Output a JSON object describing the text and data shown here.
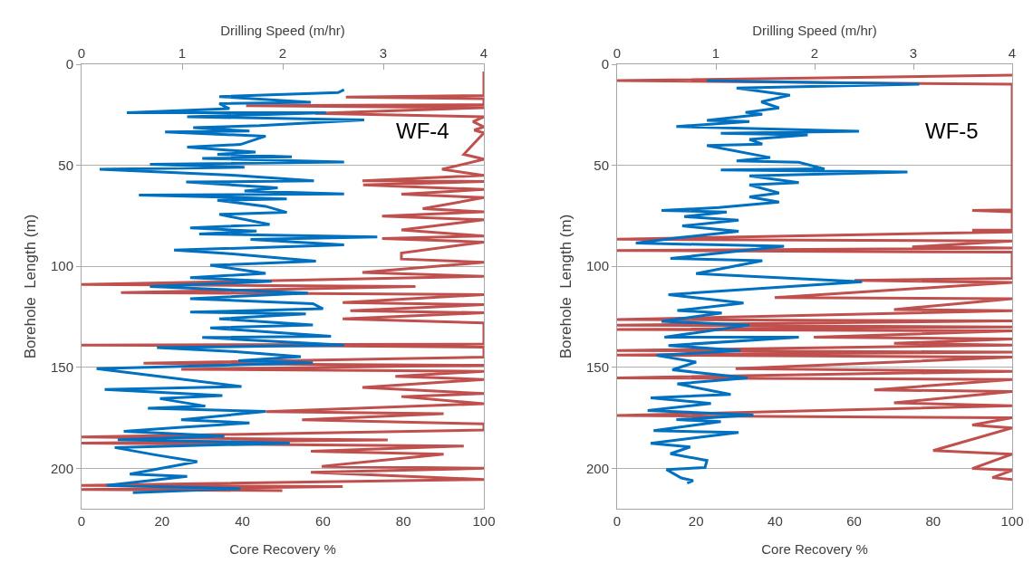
{
  "chart_data": [
    {
      "type": "line",
      "annotations": [
        "WF-4"
      ],
      "xlabel": "Core Recovery %",
      "x2label": "Drilling Speed (m/hr)",
      "ylabel": "Borehole  Length (m)",
      "xlim": [
        0,
        100
      ],
      "xticks": [
        0,
        20,
        40,
        60,
        80,
        100
      ],
      "x2lim": [
        0,
        4
      ],
      "x2ticks": [
        0,
        1,
        2,
        3,
        4
      ],
      "ylim": [
        220,
        0
      ],
      "yticks": [
        0,
        50,
        100,
        150,
        200
      ],
      "grid": "y",
      "marker": "none",
      "series": [
        {
          "color": "#c0504d",
          "x": [
            100,
            100,
            65.7,
            100,
            100,
            40.9,
            100,
            58.1,
            100,
            97.3,
            100,
            97.6,
            100,
            95,
            100,
            89.6,
            100,
            69.8,
            100,
            70,
            100,
            79.5,
            100,
            84.8,
            100,
            74.7,
            100,
            79.5,
            100,
            74.7,
            100,
            79.5,
            79.5,
            100,
            69.8,
            100,
            0,
            83,
            9.8,
            100,
            64.9,
            100,
            66.8,
            100,
            64.9,
            100,
            100,
            0,
            65,
            100,
            100,
            15.4,
            100,
            24.8,
            100,
            78,
            100,
            69.8,
            100,
            79.5,
            100,
            45.8,
            90,
            54.8,
            100,
            100,
            0,
            76.1,
            0,
            95,
            57,
            90,
            59.7,
            100,
            57,
            100,
            0,
            64.9,
            0,
            49.9
          ],
          "values": [
            3.6,
            15.5,
            16.2,
            17,
            20,
            20.5,
            21.5,
            24.3,
            26,
            28.4,
            31,
            32.6,
            34,
            44.6,
            47,
            52,
            55,
            57.7,
            58,
            59.7,
            62,
            64.3,
            66,
            71.5,
            73,
            75.2,
            77,
            82,
            85,
            86.3,
            88,
            93.4,
            96.4,
            98,
            103.1,
            105,
            109,
            110,
            113,
            114,
            118,
            119,
            122,
            123,
            126,
            128,
            138.5,
            139,
            139.5,
            140,
            145,
            148,
            149,
            151,
            152,
            154.5,
            156,
            160,
            163,
            164.5,
            168,
            172,
            173,
            176,
            178,
            181,
            184.5,
            186,
            187.5,
            189,
            191.5,
            193,
            199,
            200,
            202,
            205.5,
            208.5,
            209,
            210.5,
            211
          ]
        },
        {
          "color": "#0070c0",
          "axis": "x2",
          "x": [
            2.61,
            2.55,
            1.37,
            2.28,
            1.37,
            1.47,
            0.45,
            2.43,
            1.05,
            2.81,
            1.77,
            1.11,
            1.67,
            0.83,
            1.83,
            1.58,
            1.05,
            1.73,
            1.35,
            2.09,
            1.2,
            2.61,
            0.68,
            1.62,
            0.18,
            1.53,
            2.31,
            1.04,
            1.95,
            1.62,
            2.61,
            0.57,
            2.04,
            1.35,
            1.83,
            2.04,
            1.37,
            1.87,
            1.08,
            1.74,
            1.17,
            2.94,
            1.68,
            2.61,
            0.92,
            1.41,
            2.33,
            1.28,
            1.83,
            1.08,
            1.89,
            0.68,
            2.25,
            1.08,
            2.3,
            2.4,
            1.08,
            2.23,
            1.37,
            2.3,
            1.28,
            2.48,
            1.2,
            2.61,
            0.75,
            1.5,
            2.18,
            1.56,
            2.3,
            0.15,
            1.59,
            0.23,
            1.4,
            0.78,
            1.23,
            0.66,
            1.83,
            0.99,
            1.67,
            0.96,
            0.42,
            1.42,
            0.36,
            2.07,
            0.33,
            0.74,
            1.15,
            0.48,
            1.05,
            0.25,
            1.58,
            0.51
          ],
          "values": [
            12.6,
            14,
            16,
            18.8,
            19.5,
            22,
            24,
            24,
            26,
            27.5,
            30.4,
            31.4,
            33,
            33.5,
            35.6,
            39.7,
            41,
            43.5,
            44.6,
            45.8,
            46.6,
            48.4,
            49.5,
            51,
            52,
            55,
            57.7,
            58.3,
            61.2,
            62.7,
            64.2,
            64.7,
            66.6,
            67.3,
            70.3,
            73.3,
            74.3,
            79.3,
            81,
            82.6,
            84,
            85.5,
            86.7,
            89.4,
            92,
            93.5,
            97.5,
            99.5,
            103.5,
            105.6,
            107.4,
            110,
            113.3,
            116,
            118.5,
            121,
            122.7,
            123.5,
            126,
            129,
            130.5,
            134.6,
            135.2,
            139,
            140.3,
            142.2,
            144.7,
            146.7,
            147.7,
            150.7,
            159.5,
            161,
            164,
            165.5,
            169.2,
            170.3,
            171.8,
            176,
            177.5,
            179.8,
            181.7,
            184,
            185.8,
            187.5,
            189.7,
            193.4,
            196.7,
            202.9,
            204,
            208.5,
            210,
            212
          ]
        }
      ]
    },
    {
      "type": "line",
      "annotations": [
        "WF-5"
      ],
      "xlabel": "Core Recovery %",
      "x2label": "Drilling Speed (m/hr)",
      "ylabel": "Borehole  Length (m)",
      "xlim": [
        0,
        100
      ],
      "xticks": [
        0,
        20,
        40,
        60,
        80,
        100
      ],
      "x2lim": [
        0,
        4
      ],
      "x2ticks": [
        0,
        1,
        2,
        3,
        4
      ],
      "ylim": [
        220,
        0
      ],
      "yticks": [
        0,
        50,
        100,
        150,
        200
      ],
      "grid": "y",
      "marker": "none",
      "series": [
        {
          "color": "#c0504d",
          "x": [
            100,
            0,
            100,
            100,
            89.9,
            100,
            100,
            89.9,
            100,
            0,
            100,
            74.7,
            100,
            0,
            100,
            100,
            60.1,
            100,
            39.9,
            100,
            70.1,
            100,
            0,
            100,
            0,
            100,
            0,
            100,
            49.8,
            100,
            70.1,
            100,
            0,
            100,
            0,
            100,
            30,
            100,
            0,
            100,
            65.1,
            100,
            70.1,
            100,
            0,
            100,
            89.9,
            100,
            80,
            100,
            89.9,
            100,
            95,
            100
          ],
          "values": [
            5.4,
            8.1,
            9.9,
            72,
            72.4,
            73,
            82,
            82.1,
            83,
            86.6,
            87.5,
            90.4,
            91,
            92.2,
            93,
            106,
            107,
            108,
            115.5,
            116,
            121.4,
            122,
            126.4,
            127,
            129.1,
            130,
            131.3,
            132,
            135.1,
            136,
            138.1,
            139,
            141.7,
            142.5,
            143.9,
            145,
            150.7,
            152,
            155.2,
            156,
            161.2,
            162,
            167.6,
            169,
            173.9,
            175,
            178.6,
            180,
            191.2,
            193,
            200.1,
            201,
            204.6,
            205.5
          ]
        },
        {
          "color": "#0070c0",
          "axis": "x2",
          "x": [
            0.91,
            3.06,
            1.21,
            1.75,
            1.46,
            1.64,
            1.3,
            1.47,
            0.91,
            1.34,
            0.6,
            2.45,
            1.05,
            1.93,
            1.34,
            1.47,
            0.91,
            1.55,
            1.21,
            1.84,
            2.1,
            1.05,
            2.94,
            1.34,
            1.84,
            1.34,
            1.64,
            1.34,
            1.64,
            1.03,
            0.45,
            1.11,
            0.68,
            1.23,
            0.66,
            1.23,
            0.65,
            0.19,
            1.69,
            0.54,
            1.47,
            0.8,
            1.35,
            2.48,
            0.52,
            1.28,
            0.61,
            1.06,
            0.45,
            1.34,
            0.48,
            1.84,
            0.52,
            1.25,
            0.4,
            0.8,
            0.56,
            1.32,
            0.61,
            1.15,
            0.34,
            0.95,
            0.31,
            1.38,
            0.6,
            1.05,
            0.37,
            1.23,
            0.34,
            0.74,
            0.54,
            0.91,
            0.89,
            0.5,
            0.65,
            0.77,
            0.71
          ],
          "values": [
            8.1,
            9.9,
            11.8,
            15.3,
            18.6,
            21.6,
            23.8,
            24.8,
            27.8,
            28.3,
            30.8,
            33.2,
            34.2,
            35,
            37.2,
            39.5,
            40.2,
            46.2,
            47.8,
            48.5,
            51.8,
            52.3,
            53.3,
            55.2,
            58.6,
            59.7,
            63.7,
            65.6,
            68.2,
            70.9,
            72.4,
            73.1,
            75.4,
            77.2,
            80,
            82.7,
            85.7,
            88.5,
            90.1,
            96.1,
            97.2,
            103.6,
            105,
            107.7,
            114,
            118.2,
            121.9,
            123.1,
            127.2,
            129.1,
            135.1,
            135.1,
            139.2,
            141.7,
            144.1,
            147.4,
            151.2,
            155.3,
            158.2,
            163.4,
            165.1,
            167.9,
            171.4,
            173.6,
            175.9,
            176.9,
            181.4,
            182.3,
            187.6,
            189.4,
            192.8,
            196.1,
            199.6,
            200.6,
            204.8,
            206.1,
            207.3
          ]
        }
      ]
    }
  ]
}
